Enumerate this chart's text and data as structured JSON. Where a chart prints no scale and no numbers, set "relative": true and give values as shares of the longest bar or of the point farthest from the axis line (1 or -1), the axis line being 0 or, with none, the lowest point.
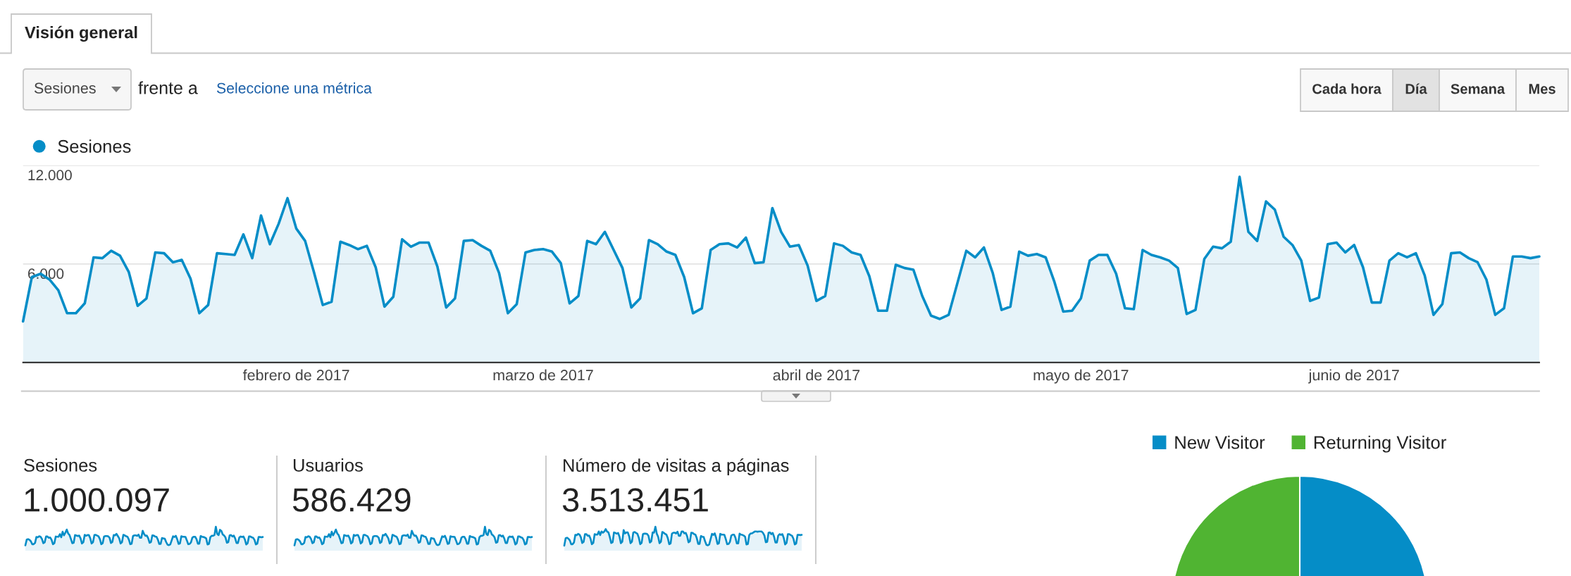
{
  "chart_data": [
    {
      "type": "other",
      "title": "Visión general",
      "annotations": [
        "Sesiones",
        "frente a",
        "Seleccione una métrica",
        "Cada hora",
        "Día",
        "Semana",
        "Mes"
      ]
    },
    {
      "type": "area",
      "xlim": [
        "2017-01-01",
        "2017-06-22"
      ],
      "xticks": [
        {
          "value": "2017-02-01",
          "label": "febrero de 2017"
        },
        {
          "value": "2017-03-01",
          "label": "marzo de 2017"
        },
        {
          "value": "2017-04-01",
          "label": "abril de 2017"
        },
        {
          "value": "2017-05-01",
          "label": "mayo de 2017"
        },
        {
          "value": "2017-06-01",
          "label": "junio de 2017"
        }
      ],
      "ylim": [
        0,
        12000
      ],
      "yticks": [
        {
          "value": 6000,
          "label": "6.000"
        },
        {
          "value": 12000,
          "label": "12.000"
        }
      ],
      "grid": "y",
      "legend": "top left",
      "x": [
        "2017-01-01",
        "2017-01-02",
        "2017-01-03",
        "2017-01-04",
        "2017-01-05",
        "2017-01-06",
        "2017-01-07",
        "2017-01-08",
        "2017-01-09",
        "2017-01-10",
        "2017-01-11",
        "2017-01-12",
        "2017-01-13",
        "2017-01-14",
        "2017-01-15",
        "2017-01-16",
        "2017-01-17",
        "2017-01-18",
        "2017-01-19",
        "2017-01-20",
        "2017-01-21",
        "2017-01-22",
        "2017-01-23",
        "2017-01-24",
        "2017-01-25",
        "2017-01-26",
        "2017-01-27",
        "2017-01-28",
        "2017-01-29",
        "2017-01-30",
        "2017-01-31",
        "2017-02-01",
        "2017-02-02",
        "2017-02-03",
        "2017-02-04",
        "2017-02-05",
        "2017-02-06",
        "2017-02-07",
        "2017-02-08",
        "2017-02-09",
        "2017-02-10",
        "2017-02-11",
        "2017-02-12",
        "2017-02-13",
        "2017-02-14",
        "2017-02-15",
        "2017-02-16",
        "2017-02-17",
        "2017-02-18",
        "2017-02-19",
        "2017-02-20",
        "2017-02-21",
        "2017-02-22",
        "2017-02-23",
        "2017-02-24",
        "2017-02-25",
        "2017-02-26",
        "2017-02-27",
        "2017-02-28",
        "2017-03-01",
        "2017-03-02",
        "2017-03-03",
        "2017-03-04",
        "2017-03-05",
        "2017-03-06",
        "2017-03-07",
        "2017-03-08",
        "2017-03-09",
        "2017-03-10",
        "2017-03-11",
        "2017-03-12",
        "2017-03-13",
        "2017-03-14",
        "2017-03-15",
        "2017-03-16",
        "2017-03-17",
        "2017-03-18",
        "2017-03-19",
        "2017-03-20",
        "2017-03-21",
        "2017-03-22",
        "2017-03-23",
        "2017-03-24",
        "2017-03-25",
        "2017-03-26",
        "2017-03-27",
        "2017-03-28",
        "2017-03-29",
        "2017-03-30",
        "2017-03-31",
        "2017-04-01",
        "2017-04-02",
        "2017-04-03",
        "2017-04-04",
        "2017-04-05",
        "2017-04-06",
        "2017-04-07",
        "2017-04-08",
        "2017-04-09",
        "2017-04-10",
        "2017-04-11",
        "2017-04-12",
        "2017-04-13",
        "2017-04-14",
        "2017-04-15",
        "2017-04-16",
        "2017-04-17",
        "2017-04-18",
        "2017-04-19",
        "2017-04-20",
        "2017-04-21",
        "2017-04-22",
        "2017-04-23",
        "2017-04-24",
        "2017-04-25",
        "2017-04-26",
        "2017-04-27",
        "2017-04-28",
        "2017-04-29",
        "2017-04-30",
        "2017-05-01",
        "2017-05-02",
        "2017-05-03",
        "2017-05-04",
        "2017-05-05",
        "2017-05-06",
        "2017-05-07",
        "2017-05-08",
        "2017-05-09",
        "2017-05-10",
        "2017-05-11",
        "2017-05-12",
        "2017-05-13",
        "2017-05-14",
        "2017-05-15",
        "2017-05-16",
        "2017-05-17",
        "2017-05-18",
        "2017-05-19",
        "2017-05-20",
        "2017-05-21",
        "2017-05-22",
        "2017-05-23",
        "2017-05-24",
        "2017-05-25",
        "2017-05-26",
        "2017-05-27",
        "2017-05-28",
        "2017-05-29",
        "2017-05-30",
        "2017-05-31",
        "2017-06-01",
        "2017-06-02",
        "2017-06-03",
        "2017-06-04",
        "2017-06-05",
        "2017-06-06",
        "2017-06-07",
        "2017-06-08",
        "2017-06-09",
        "2017-06-10",
        "2017-06-11",
        "2017-06-12",
        "2017-06-13",
        "2017-06-14",
        "2017-06-15",
        "2017-06-16",
        "2017-06-17",
        "2017-06-18",
        "2017-06-19",
        "2017-06-20",
        "2017-06-21",
        "2017-06-22"
      ],
      "series": [
        {
          "name": "Sesiones",
          "color": "#058dc7",
          "values": [
            2500,
            5200,
            5400,
            5050,
            4400,
            3000,
            3000,
            3600,
            6400,
            6350,
            6800,
            6500,
            5500,
            3450,
            3900,
            6700,
            6650,
            6100,
            6250,
            5100,
            3000,
            3500,
            6650,
            6600,
            6550,
            7800,
            6350,
            8950,
            7200,
            8450,
            10000,
            8150,
            7400,
            5500,
            3500,
            3700,
            7350,
            7150,
            6900,
            7100,
            5800,
            3400,
            4000,
            7500,
            7050,
            7300,
            7300,
            5850,
            3350,
            3900,
            7400,
            7450,
            7100,
            6800,
            5450,
            3000,
            3550,
            6700,
            6850,
            6900,
            6750,
            6050,
            3600,
            4050,
            7400,
            7200,
            7950,
            6850,
            5750,
            3350,
            3900,
            7450,
            7200,
            6750,
            6550,
            5200,
            3000,
            3300,
            6850,
            7200,
            7250,
            7000,
            7600,
            6050,
            6100,
            9400,
            7950,
            7050,
            7150,
            5900,
            3750,
            4050,
            7250,
            7100,
            6700,
            6550,
            5250,
            3150,
            3150,
            5950,
            5750,
            5650,
            4050,
            2850,
            2650,
            2900,
            4850,
            6800,
            6400,
            7000,
            5450,
            3200,
            3400,
            6750,
            6500,
            6600,
            6400,
            4900,
            3100,
            3150,
            3900,
            6200,
            6550,
            6550,
            5400,
            3300,
            3250,
            6850,
            6550,
            6400,
            6200,
            5750,
            2950,
            3200,
            6300,
            7050,
            6950,
            7350,
            11300,
            7950,
            7400,
            9800,
            9300,
            7650,
            7150,
            6200,
            3750,
            3950,
            7200,
            7300,
            6700,
            7150,
            5800,
            3650,
            3650,
            6200,
            6650,
            6400,
            6650,
            5300,
            2900,
            3550,
            6650,
            6700,
            6350,
            6100,
            5050,
            2900,
            3300,
            6450,
            6450,
            6350,
            6450
          ]
        }
      ]
    },
    {
      "type": "area",
      "title": "Sesiones",
      "subtitle": "1.000.097",
      "relative": true,
      "categories": [
        null,
        null,
        null,
        null,
        null,
        null,
        null,
        null,
        null,
        null,
        null,
        null,
        null,
        null,
        null,
        null,
        null,
        null,
        null,
        null,
        null,
        null,
        null,
        null,
        null,
        null,
        null,
        null,
        null,
        null,
        null,
        null,
        null,
        null,
        null,
        null,
        null,
        null,
        null,
        null,
        null,
        null,
        null,
        null,
        null,
        null,
        null,
        null,
        null,
        null,
        null,
        null,
        null,
        null,
        null,
        null,
        null,
        null,
        null,
        null,
        null,
        null,
        null,
        null,
        null,
        null,
        null,
        null,
        null,
        null,
        null,
        null,
        null,
        null,
        null,
        null,
        null,
        null,
        null,
        null,
        null,
        null,
        null,
        null,
        null,
        null,
        null,
        null,
        null,
        null,
        null,
        null,
        null,
        null,
        null,
        null,
        null,
        null,
        null,
        null,
        null,
        null,
        null,
        null,
        null,
        null,
        null,
        null,
        null,
        null,
        null,
        null,
        null,
        null,
        null,
        null,
        null,
        null,
        null,
        null,
        null,
        null,
        null,
        null,
        null,
        null,
        null,
        null,
        null,
        null,
        null,
        null,
        null,
        null,
        null,
        null,
        null,
        null,
        null,
        null,
        null,
        null,
        null,
        null,
        null,
        null,
        null,
        null,
        null,
        null,
        null,
        null,
        null,
        null,
        null,
        null,
        null,
        null,
        null,
        null,
        null,
        null,
        null,
        null,
        null,
        null,
        null,
        null,
        null,
        null,
        null,
        null,
        null
      ],
      "series": [
        {
          "color": "#058dc7",
          "values": [
            0.22,
            0.46,
            0.48,
            0.45,
            0.39,
            0.27,
            0.27,
            0.32,
            0.57,
            0.56,
            0.6,
            0.58,
            0.49,
            0.31,
            0.35,
            0.59,
            0.59,
            0.54,
            0.55,
            0.45,
            0.27,
            0.31,
            0.59,
            0.58,
            0.58,
            0.69,
            0.56,
            0.79,
            0.64,
            0.75,
            0.88,
            0.72,
            0.65,
            0.49,
            0.31,
            0.33,
            0.65,
            0.63,
            0.61,
            0.63,
            0.51,
            0.3,
            0.35,
            0.66,
            0.62,
            0.65,
            0.65,
            0.52,
            0.3,
            0.35,
            0.65,
            0.66,
            0.63,
            0.6,
            0.48,
            0.27,
            0.31,
            0.59,
            0.61,
            0.61,
            0.6,
            0.54,
            0.32,
            0.36,
            0.65,
            0.64,
            0.7,
            0.61,
            0.51,
            0.3,
            0.35,
            0.66,
            0.64,
            0.6,
            0.58,
            0.46,
            0.27,
            0.29,
            0.61,
            0.64,
            0.64,
            0.62,
            0.67,
            0.54,
            0.54,
            0.83,
            0.7,
            0.62,
            0.63,
            0.52,
            0.33,
            0.36,
            0.64,
            0.63,
            0.59,
            0.58,
            0.46,
            0.28,
            0.28,
            0.53,
            0.51,
            0.5,
            0.36,
            0.25,
            0.23,
            0.26,
            0.43,
            0.6,
            0.57,
            0.62,
            0.48,
            0.28,
            0.3,
            0.6,
            0.58,
            0.58,
            0.57,
            0.43,
            0.27,
            0.28,
            0.35,
            0.55,
            0.58,
            0.58,
            0.48,
            0.29,
            0.29,
            0.61,
            0.58,
            0.57,
            0.55,
            0.51,
            0.26,
            0.28,
            0.56,
            0.62,
            0.62,
            0.65,
            1,
            0.7,
            0.65,
            0.87,
            0.82,
            0.68,
            0.63,
            0.55,
            0.33,
            0.35,
            0.64,
            0.65,
            0.59,
            0.63,
            0.51,
            0.32,
            0.32,
            0.55,
            0.59,
            0.57,
            0.59,
            0.47,
            0.26,
            0.31,
            0.59,
            0.59,
            0.56,
            0.54,
            0.45,
            0.26,
            0.29,
            0.57,
            0.57,
            0.56,
            0.57
          ]
        }
      ]
    },
    {
      "type": "area",
      "title": "Usuarios",
      "subtitle": "586.429",
      "relative": true,
      "categories": [
        null,
        null,
        null,
        null,
        null,
        null,
        null,
        null,
        null,
        null,
        null,
        null,
        null,
        null,
        null,
        null,
        null,
        null,
        null,
        null,
        null,
        null,
        null,
        null,
        null,
        null,
        null,
        null,
        null,
        null,
        null,
        null,
        null,
        null,
        null,
        null,
        null,
        null,
        null,
        null,
        null,
        null,
        null,
        null,
        null,
        null,
        null,
        null,
        null,
        null,
        null,
        null,
        null,
        null,
        null,
        null,
        null,
        null,
        null,
        null,
        null,
        null,
        null,
        null,
        null,
        null,
        null,
        null,
        null,
        null,
        null,
        null,
        null,
        null,
        null,
        null,
        null,
        null,
        null,
        null,
        null,
        null,
        null,
        null,
        null,
        null,
        null,
        null,
        null,
        null,
        null,
        null,
        null,
        null,
        null,
        null,
        null,
        null,
        null,
        null,
        null,
        null,
        null,
        null,
        null,
        null,
        null,
        null,
        null,
        null,
        null,
        null,
        null,
        null,
        null,
        null,
        null,
        null,
        null,
        null,
        null,
        null,
        null,
        null,
        null,
        null,
        null,
        null,
        null,
        null,
        null,
        null,
        null,
        null,
        null,
        null,
        null,
        null,
        null,
        null,
        null,
        null,
        null,
        null,
        null,
        null,
        null,
        null,
        null,
        null,
        null,
        null,
        null,
        null,
        null,
        null,
        null,
        null,
        null,
        null,
        null,
        null,
        null,
        null,
        null,
        null,
        null,
        null,
        null,
        null,
        null,
        null,
        null
      ],
      "series": [
        {
          "color": "#058dc7",
          "values": [
            0.22,
            0.46,
            0.48,
            0.45,
            0.39,
            0.27,
            0.27,
            0.32,
            0.57,
            0.56,
            0.6,
            0.58,
            0.49,
            0.31,
            0.35,
            0.59,
            0.59,
            0.54,
            0.55,
            0.45,
            0.27,
            0.31,
            0.59,
            0.58,
            0.58,
            0.69,
            0.56,
            0.79,
            0.64,
            0.75,
            0.88,
            0.72,
            0.65,
            0.49,
            0.31,
            0.33,
            0.65,
            0.63,
            0.61,
            0.63,
            0.51,
            0.3,
            0.35,
            0.66,
            0.62,
            0.65,
            0.65,
            0.52,
            0.3,
            0.35,
            0.65,
            0.66,
            0.63,
            0.6,
            0.48,
            0.27,
            0.31,
            0.59,
            0.61,
            0.61,
            0.6,
            0.54,
            0.32,
            0.36,
            0.65,
            0.64,
            0.7,
            0.61,
            0.51,
            0.3,
            0.35,
            0.66,
            0.64,
            0.6,
            0.58,
            0.46,
            0.27,
            0.29,
            0.61,
            0.64,
            0.64,
            0.62,
            0.67,
            0.54,
            0.54,
            0.83,
            0.7,
            0.62,
            0.63,
            0.52,
            0.33,
            0.36,
            0.64,
            0.63,
            0.59,
            0.58,
            0.46,
            0.28,
            0.28,
            0.53,
            0.51,
            0.5,
            0.36,
            0.25,
            0.23,
            0.26,
            0.43,
            0.6,
            0.57,
            0.62,
            0.48,
            0.28,
            0.3,
            0.6,
            0.58,
            0.58,
            0.57,
            0.43,
            0.27,
            0.28,
            0.35,
            0.55,
            0.58,
            0.58,
            0.48,
            0.29,
            0.29,
            0.61,
            0.58,
            0.57,
            0.55,
            0.51,
            0.26,
            0.28,
            0.56,
            0.62,
            0.62,
            0.65,
            1,
            0.7,
            0.65,
            0.87,
            0.82,
            0.68,
            0.63,
            0.55,
            0.33,
            0.35,
            0.64,
            0.65,
            0.59,
            0.63,
            0.51,
            0.32,
            0.32,
            0.55,
            0.59,
            0.57,
            0.59,
            0.47,
            0.26,
            0.31,
            0.59,
            0.59,
            0.56,
            0.54,
            0.45,
            0.26,
            0.29,
            0.57,
            0.57,
            0.56,
            0.57
          ]
        }
      ]
    },
    {
      "type": "area",
      "title": "Número de visitas a páginas",
      "subtitle": "3.513.451",
      "relative": true,
      "categories": [
        null,
        null,
        null,
        null,
        null,
        null,
        null,
        null,
        null,
        null,
        null,
        null,
        null,
        null,
        null,
        null,
        null,
        null,
        null,
        null,
        null,
        null,
        null,
        null,
        null,
        null,
        null,
        null,
        null,
        null,
        null,
        null,
        null,
        null,
        null,
        null,
        null,
        null,
        null,
        null,
        null,
        null,
        null,
        null,
        null,
        null,
        null,
        null,
        null,
        null,
        null,
        null,
        null,
        null,
        null,
        null,
        null,
        null,
        null,
        null,
        null,
        null,
        null,
        null,
        null,
        null,
        null,
        null,
        null,
        null,
        null,
        null,
        null,
        null,
        null,
        null,
        null,
        null,
        null,
        null,
        null,
        null,
        null,
        null,
        null,
        null,
        null,
        null,
        null,
        null,
        null,
        null,
        null,
        null,
        null,
        null,
        null,
        null,
        null,
        null,
        null,
        null,
        null,
        null,
        null,
        null,
        null,
        null,
        null,
        null,
        null,
        null,
        null,
        null,
        null,
        null,
        null,
        null,
        null,
        null,
        null,
        null,
        null,
        null,
        null,
        null,
        null,
        null,
        null,
        null,
        null,
        null,
        null,
        null,
        null,
        null,
        null,
        null,
        null,
        null,
        null,
        null,
        null,
        null,
        null,
        null,
        null,
        null,
        null,
        null,
        null,
        null,
        null,
        null,
        null,
        null,
        null,
        null,
        null,
        null,
        null,
        null,
        null,
        null,
        null,
        null,
        null,
        null,
        null,
        null,
        null,
        null,
        null
      ],
      "series": [
        {
          "color": "#058dc7",
          "values": [
            0.21,
            0.52,
            0.54,
            0.5,
            0.43,
            0.27,
            0.27,
            0.34,
            0.66,
            0.65,
            0.7,
            0.67,
            0.56,
            0.32,
            0.37,
            0.69,
            0.69,
            0.62,
            0.63,
            0.5,
            0.27,
            0.32,
            0.69,
            0.67,
            0.67,
            0.8,
            0.65,
            0.8,
            0.75,
            0.8,
            0.9,
            0.8,
            0.76,
            0.56,
            0.32,
            0.35,
            0.76,
            0.74,
            0.71,
            0.74,
            0.58,
            0.31,
            0.37,
            0.86,
            0.72,
            0.76,
            0.76,
            0.6,
            0.31,
            0.37,
            0.76,
            0.78,
            0.74,
            0.7,
            0.54,
            0.27,
            0.32,
            0.69,
            0.71,
            0.71,
            0.7,
            0.62,
            0.34,
            0.39,
            0.76,
            0.75,
            1,
            0.71,
            0.58,
            0.31,
            0.37,
            0.78,
            0.75,
            0.7,
            0.67,
            0.52,
            0.27,
            0.3,
            0.71,
            0.75,
            0.75,
            0.72,
            0.79,
            0.62,
            0.62,
            0.8,
            0.8,
            0.72,
            0.74,
            0.6,
            0.35,
            0.39,
            0.75,
            0.74,
            0.69,
            0.67,
            0.52,
            0.28,
            0.28,
            0.61,
            0.58,
            0.57,
            0.39,
            0.24,
            0.22,
            0.26,
            0.48,
            0.7,
            0.66,
            0.72,
            0.54,
            0.28,
            0.31,
            0.7,
            0.67,
            0.67,
            0.66,
            0.48,
            0.27,
            0.28,
            0.37,
            0.63,
            0.67,
            0.67,
            0.54,
            0.3,
            0.3,
            0.71,
            0.67,
            0.66,
            0.63,
            0.58,
            0.26,
            0.28,
            0.65,
            0.72,
            0.72,
            0.76,
            0.8,
            0.8,
            0.79,
            0.8,
            0.8,
            0.8,
            0.74,
            0.63,
            0.35,
            0.37,
            0.75,
            0.76,
            0.69,
            0.74,
            0.58,
            0.34,
            0.34,
            0.63,
            0.69,
            0.66,
            0.69,
            0.53,
            0.26,
            0.32,
            0.69,
            0.69,
            0.65,
            0.62,
            0.5,
            0.26,
            0.3,
            0.66,
            0.66,
            0.65,
            0.66
          ]
        }
      ]
    },
    {
      "type": "pie",
      "categories": [
        "New Visitor",
        "Returning Visitor"
      ],
      "values": [
        50,
        50
      ],
      "colors": [
        "#058dc7",
        "#50b432"
      ],
      "legend": "top"
    }
  ]
}
